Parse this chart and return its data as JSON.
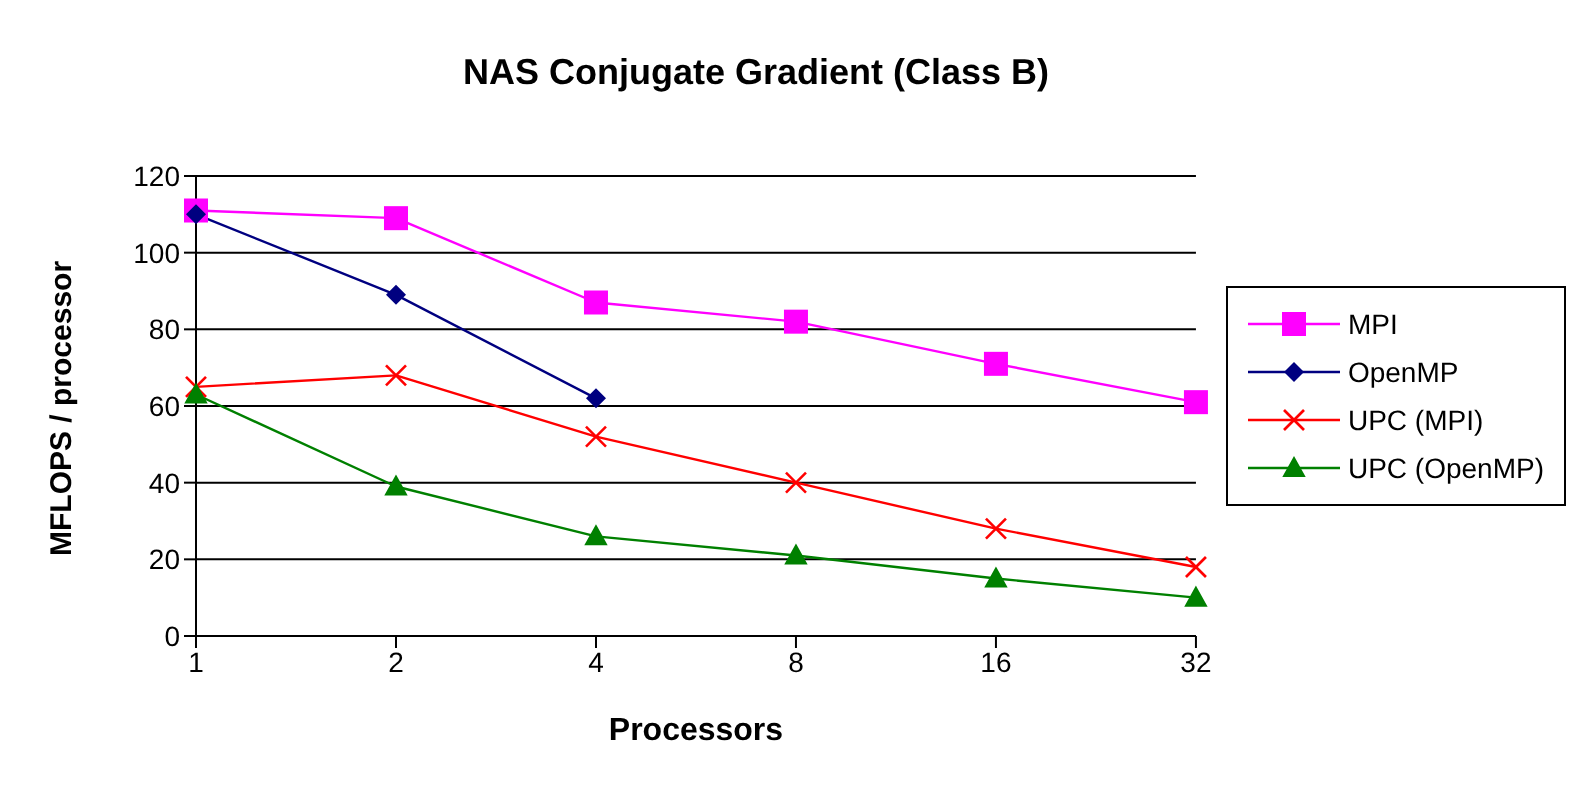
{
  "chart_data": {
    "type": "line",
    "title": "NAS Conjugate Gradient (Class B)",
    "xlabel": "Processors",
    "ylabel": "MFLOPS / processor",
    "categories": [
      "1",
      "2",
      "4",
      "8",
      "16",
      "32"
    ],
    "series": [
      {
        "name": "MPI",
        "color": "#ff00ff",
        "marker": "square",
        "values": [
          111,
          109,
          87,
          82,
          71,
          61
        ]
      },
      {
        "name": "OpenMP",
        "color": "#000080",
        "marker": "diamond",
        "values": [
          110,
          89,
          62,
          null,
          null,
          null
        ]
      },
      {
        "name": "UPC (MPI)",
        "color": "#ff0000",
        "marker": "cross",
        "values": [
          65,
          68,
          52,
          40,
          28,
          18
        ]
      },
      {
        "name": "UPC (OpenMP)",
        "color": "#008000",
        "marker": "triangle",
        "values": [
          63,
          39,
          26,
          21,
          15,
          10
        ]
      }
    ],
    "ylim": [
      0,
      120
    ],
    "yticks": [
      0,
      20,
      40,
      60,
      80,
      100,
      120
    ],
    "grid": "y",
    "legend": "right"
  }
}
